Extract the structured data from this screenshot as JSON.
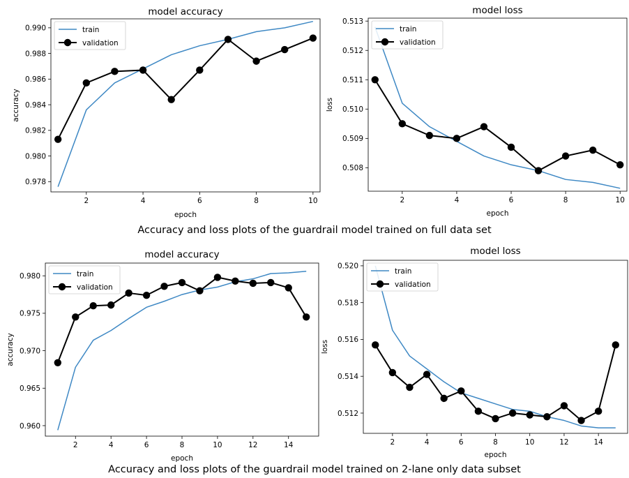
{
  "captions": {
    "top": "Accuracy and loss plots of the guardrail model trained on full data set",
    "bottom": "Accuracy and loss plots of the guardrail model trained on 2-lane only data subset"
  },
  "chart_data": [
    {
      "type": "line",
      "title": "model accuracy",
      "xlabel": "epoch",
      "ylabel": "accuracy",
      "xlim": [
        0.75,
        10.25
      ],
      "ylim": [
        0.9772,
        0.9907
      ],
      "xticks": [
        2,
        4,
        6,
        8,
        10
      ],
      "yticks": [
        0.978,
        0.98,
        0.982,
        0.984,
        0.986,
        0.988,
        0.99
      ],
      "ytick_decimals": 3,
      "legend": "upper-left",
      "x": [
        1,
        2,
        3,
        4,
        5,
        6,
        7,
        8,
        9,
        10
      ],
      "series": [
        {
          "name": "train",
          "color": "#3e88c4",
          "marker": false,
          "values": [
            0.9776,
            0.9836,
            0.9857,
            0.9868,
            0.9879,
            0.9886,
            0.9891,
            0.9897,
            0.99,
            0.9905
          ]
        },
        {
          "name": "validation",
          "color": "#000000",
          "marker": true,
          "values": [
            0.9813,
            0.9857,
            0.9866,
            0.9867,
            0.9844,
            0.9867,
            0.9891,
            0.9874,
            0.9883,
            0.9892
          ]
        }
      ]
    },
    {
      "type": "line",
      "title": "model loss",
      "xlabel": "epoch",
      "ylabel": "loss",
      "xlim": [
        0.75,
        10.25
      ],
      "ylim": [
        0.5072,
        0.5131
      ],
      "xticks": [
        2,
        4,
        6,
        8,
        10
      ],
      "yticks": [
        0.508,
        0.509,
        0.51,
        0.511,
        0.512,
        0.513
      ],
      "ytick_decimals": 3,
      "legend": "upper-left",
      "x": [
        1,
        2,
        3,
        4,
        5,
        6,
        7,
        8,
        9,
        10
      ],
      "series": [
        {
          "name": "train",
          "color": "#3e88c4",
          "marker": false,
          "values": [
            0.5128,
            0.5102,
            0.5094,
            0.5089,
            0.5084,
            0.5081,
            0.5079,
            0.5076,
            0.5075,
            0.5073
          ]
        },
        {
          "name": "validation",
          "color": "#000000",
          "marker": true,
          "values": [
            0.511,
            0.5095,
            0.5091,
            0.509,
            0.5094,
            0.5087,
            0.5079,
            0.5084,
            0.5086,
            0.5081
          ]
        }
      ]
    },
    {
      "type": "line",
      "title": "model accuracy",
      "xlabel": "epoch",
      "ylabel": "accuracy",
      "xlim": [
        0.3,
        15.7
      ],
      "ylim": [
        0.9586,
        0.9817
      ],
      "xticks": [
        2,
        4,
        6,
        8,
        10,
        12,
        14
      ],
      "yticks": [
        0.96,
        0.965,
        0.97,
        0.975,
        0.98
      ],
      "ytick_decimals": 3,
      "legend": "upper-left",
      "x": [
        1,
        2,
        3,
        4,
        5,
        6,
        7,
        8,
        9,
        10,
        11,
        12,
        13,
        14,
        15
      ],
      "series": [
        {
          "name": "train",
          "color": "#3e88c4",
          "marker": false,
          "values": [
            0.9594,
            0.9678,
            0.9714,
            0.9727,
            0.9743,
            0.9758,
            0.9766,
            0.9775,
            0.9781,
            0.9785,
            0.9792,
            0.9796,
            0.9803,
            0.9804,
            0.9806
          ]
        },
        {
          "name": "validation",
          "color": "#000000",
          "marker": true,
          "values": [
            0.9684,
            0.9745,
            0.976,
            0.9761,
            0.9777,
            0.9774,
            0.9786,
            0.9791,
            0.978,
            0.9798,
            0.9793,
            0.979,
            0.9791,
            0.9784,
            0.9745
          ]
        }
      ]
    },
    {
      "type": "line",
      "title": "model loss",
      "xlabel": "epoch",
      "ylabel": "loss",
      "xlim": [
        0.3,
        15.7
      ],
      "ylim": [
        0.5109,
        0.5203
      ],
      "xticks": [
        2,
        4,
        6,
        8,
        10,
        12,
        14
      ],
      "yticks": [
        0.512,
        0.514,
        0.516,
        0.518,
        0.52
      ],
      "ytick_decimals": 3,
      "legend": "upper-left",
      "x": [
        1,
        2,
        3,
        4,
        5,
        6,
        7,
        8,
        9,
        10,
        11,
        12,
        13,
        14,
        15
      ],
      "series": [
        {
          "name": "train",
          "color": "#3e88c4",
          "marker": false,
          "values": [
            0.52,
            0.5165,
            0.5151,
            0.5144,
            0.5137,
            0.5131,
            0.5128,
            0.5125,
            0.5122,
            0.5121,
            0.5118,
            0.5116,
            0.5113,
            0.5112,
            0.5112
          ]
        },
        {
          "name": "validation",
          "color": "#000000",
          "marker": true,
          "values": [
            0.5157,
            0.5142,
            0.5134,
            0.5141,
            0.5128,
            0.5132,
            0.5121,
            0.5117,
            0.512,
            0.5119,
            0.5118,
            0.5124,
            0.5116,
            0.5121,
            0.5157
          ]
        }
      ]
    }
  ]
}
